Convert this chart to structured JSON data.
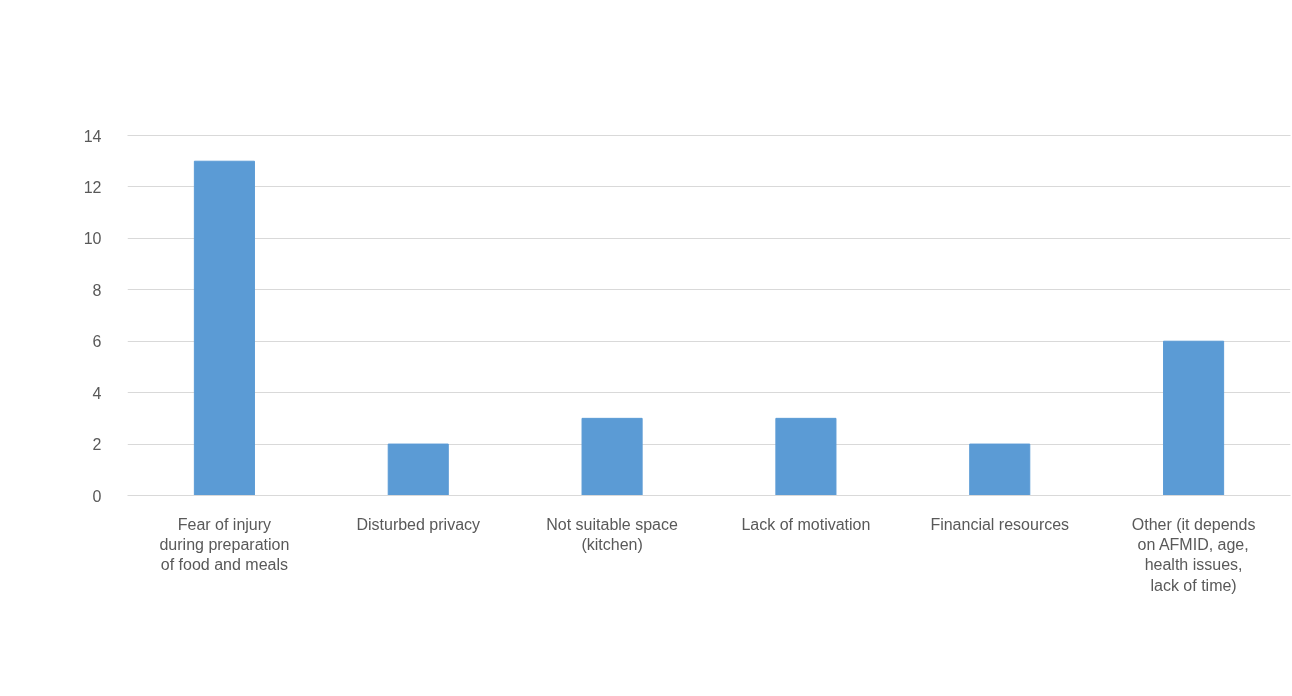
{
  "chart_data": {
    "type": "bar",
    "categories": [
      "Fear of injury\nduring preparation\nof food and meals",
      "Disturbed privacy",
      "Not suitable space\n(kitchen)",
      "Lack of motivation",
      "Financial resources",
      "Other (it depends\non AFMID, age,\nhealth issues,\nlack of time)"
    ],
    "values": [
      13,
      2,
      3,
      3,
      2,
      6
    ],
    "color": "#5b9bd5",
    "ylim": [
      0,
      14
    ],
    "yticks": [
      0,
      2,
      4,
      6,
      8,
      10,
      12,
      14
    ],
    "grid": "y"
  }
}
